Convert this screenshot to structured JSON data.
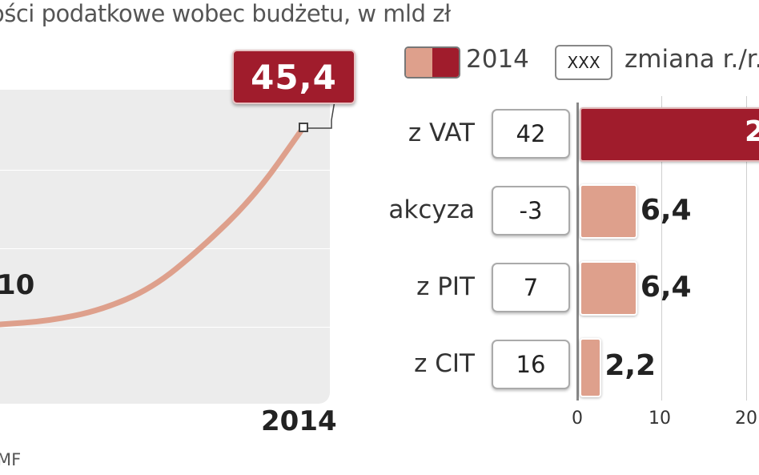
{
  "title": "ości podatkowe wobec budżetu, w mld zł",
  "source": "MF",
  "line_chart": {
    "end_value": "45,4",
    "start_label": "10",
    "end_year": "2014"
  },
  "legend": {
    "series_label": "2014",
    "change_box": "XXX",
    "change_label": "zmiana r./r."
  },
  "colors": {
    "highlight": "#a01c2c",
    "bar": "#dea08c",
    "line": "#dea08c"
  },
  "chart_data": [
    {
      "type": "line",
      "x": [
        "",
        "",
        "",
        "",
        "",
        "",
        "2014"
      ],
      "series": [
        {
          "values": [
            null,
            10,
            null,
            null,
            null,
            null,
            45.4
          ]
        }
      ],
      "title": "",
      "xlabel": "",
      "ylabel": ""
    },
    {
      "type": "bar",
      "orientation": "horizontal",
      "categories": [
        "z VAT",
        "akcyza",
        "z PIT",
        "z CIT"
      ],
      "values": [
        null,
        6.4,
        6.4,
        2.2
      ],
      "value_labels": [
        "2",
        "6,4",
        "6,4",
        "2,2"
      ],
      "changes": [
        "42",
        "-3",
        "7",
        "16"
      ],
      "x_ticks": [
        "0",
        "10",
        "20"
      ],
      "xlim": [
        0,
        20
      ]
    }
  ]
}
